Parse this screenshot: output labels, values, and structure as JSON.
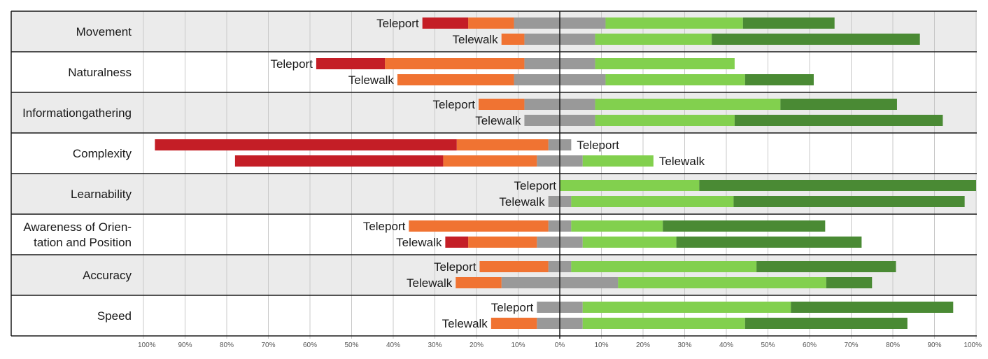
{
  "chart_data": {
    "type": "bar",
    "subtype": "diverging-stacked-horizontal",
    "title": "",
    "xlabel": "",
    "ylabel": "",
    "xlim": [
      -1.0,
      1.0
    ],
    "grid": true,
    "legend": "none",
    "x_tick_labels": [
      "100%",
      "90%",
      "80%",
      "70%",
      "60%",
      "50%",
      "40%",
      "30%",
      "20%",
      "10%",
      "0%",
      "10%",
      "20%",
      "30%",
      "40%",
      "50%",
      "60%",
      "70%",
      "80%",
      "90%",
      "100%"
    ],
    "segment_colors": {
      "strong_negative": "#c41e26",
      "negative": "#f07332",
      "neutral": "#999999",
      "positive": "#82d04e",
      "strong_positive": "#4a8a34"
    },
    "row_background_colors": [
      "#ebebeb",
      "#ffffff"
    ],
    "categories": [
      {
        "name": "Movement",
        "name_lines": [
          "Movement"
        ],
        "bars": [
          {
            "label": "Teleport",
            "label_side": "left",
            "values": {
              "strong_negative": 0.11,
              "negative": 0.11,
              "neutral": 0.22,
              "positive": 0.33,
              "strong_positive": 0.22
            }
          },
          {
            "label": "Telewalk",
            "label_side": "left",
            "values": {
              "strong_negative": 0.0,
              "negative": 0.055,
              "neutral": 0.17,
              "positive": 0.28,
              "strong_positive": 0.5
            }
          }
        ]
      },
      {
        "name": "Naturalness",
        "name_lines": [
          "Naturalness"
        ],
        "bars": [
          {
            "label": "Teleport",
            "label_side": "left",
            "values": {
              "strong_negative": 0.165,
              "negative": 0.335,
              "neutral": 0.17,
              "positive": 0.335,
              "strong_positive": 0.0
            }
          },
          {
            "label": "Telewalk",
            "label_side": "left",
            "values": {
              "strong_negative": 0.0,
              "negative": 0.28,
              "neutral": 0.22,
              "positive": 0.335,
              "strong_positive": 0.165
            }
          }
        ]
      },
      {
        "name": "Informationgathering",
        "name_lines": [
          "Informationgathering"
        ],
        "bars": [
          {
            "label": "Teleport",
            "label_side": "left",
            "values": {
              "strong_negative": 0.0,
              "negative": 0.11,
              "neutral": 0.17,
              "positive": 0.445,
              "strong_positive": 0.28
            }
          },
          {
            "label": "Telewalk",
            "label_side": "left",
            "values": {
              "strong_negative": 0.0,
              "negative": 0.0,
              "neutral": 0.17,
              "positive": 0.335,
              "strong_positive": 0.5
            }
          }
        ]
      },
      {
        "name": "Complexity",
        "name_lines": [
          "Complexity"
        ],
        "bars": [
          {
            "label": "Teleport",
            "label_side": "right",
            "values": {
              "strong_negative": 0.725,
              "negative": 0.22,
              "neutral": 0.055,
              "positive": 0.0,
              "strong_positive": 0.0
            }
          },
          {
            "label": "Telewalk",
            "label_side": "right",
            "values": {
              "strong_negative": 0.5,
              "negative": 0.225,
              "neutral": 0.11,
              "positive": 0.17,
              "strong_positive": 0.0
            }
          }
        ]
      },
      {
        "name": "Learnability",
        "name_lines": [
          "Learnability"
        ],
        "bars": [
          {
            "label": "Teleport",
            "label_side": "left",
            "values": {
              "strong_negative": 0.0,
              "negative": 0.0,
              "neutral": 0.0,
              "positive": 0.335,
              "strong_positive": 0.665
            }
          },
          {
            "label": "Telewalk",
            "label_side": "left",
            "values": {
              "strong_negative": 0.0,
              "negative": 0.0,
              "neutral": 0.055,
              "positive": 0.39,
              "strong_positive": 0.555
            }
          }
        ]
      },
      {
        "name": "Awareness of Orientation and Position",
        "name_lines": [
          "Awareness of Orien-",
          "tation and Position"
        ],
        "bars": [
          {
            "label": "Teleport",
            "label_side": "left",
            "values": {
              "strong_negative": 0.0,
              "negative": 0.335,
              "neutral": 0.055,
              "positive": 0.22,
              "strong_positive": 0.39
            }
          },
          {
            "label": "Telewalk",
            "label_side": "left",
            "values": {
              "strong_negative": 0.055,
              "negative": 0.165,
              "neutral": 0.11,
              "positive": 0.225,
              "strong_positive": 0.445
            }
          }
        ]
      },
      {
        "name": "Accuracy",
        "name_lines": [
          "Accuracy"
        ],
        "bars": [
          {
            "label": "Teleport",
            "label_side": "left",
            "values": {
              "strong_negative": 0.0,
              "negative": 0.165,
              "neutral": 0.055,
              "positive": 0.445,
              "strong_positive": 0.335
            }
          },
          {
            "label": "Telewalk",
            "label_side": "left",
            "values": {
              "strong_negative": 0.0,
              "negative": 0.11,
              "neutral": 0.28,
              "positive": 0.5,
              "strong_positive": 0.11
            }
          }
        ]
      },
      {
        "name": "Speed",
        "name_lines": [
          "Speed"
        ],
        "bars": [
          {
            "label": "Teleport",
            "label_side": "left",
            "values": {
              "strong_negative": 0.0,
              "negative": 0.0,
              "neutral": 0.11,
              "positive": 0.5,
              "strong_positive": 0.39
            }
          },
          {
            "label": "Telewalk",
            "label_side": "left",
            "values": {
              "strong_negative": 0.0,
              "negative": 0.11,
              "neutral": 0.11,
              "positive": 0.39,
              "strong_positive": 0.39
            }
          }
        ]
      }
    ]
  }
}
